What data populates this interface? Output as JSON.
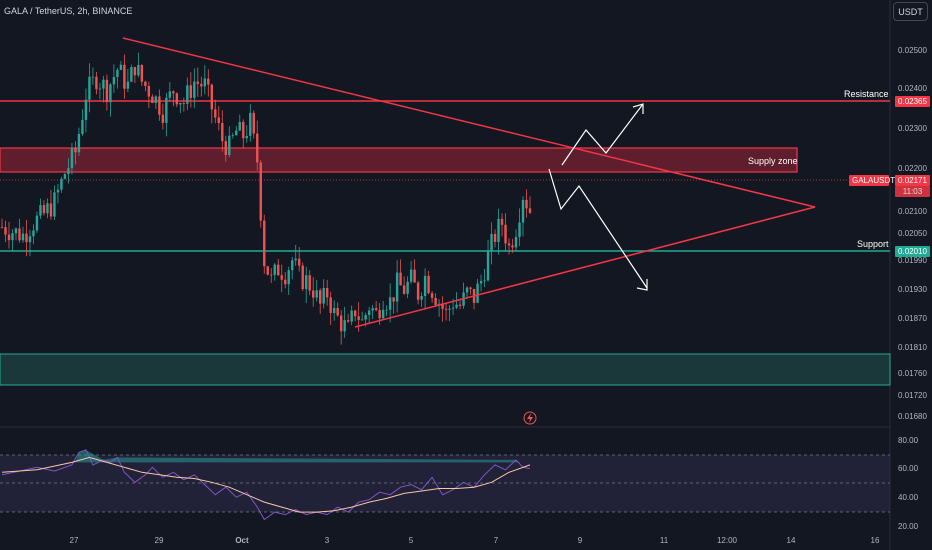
{
  "header": {
    "title": "GALA / TetherUS, 2h, BINANCE",
    "currency": "USDT"
  },
  "chart_data": [
    {
      "type": "candlestick",
      "title": "GALA / TetherUS, 2h, BINANCE",
      "symbol": "GALAUSDT",
      "last_price": "0.02171",
      "countdown": "11:03",
      "price_ticks": [
        "0.02500",
        "0.02400",
        "0.02300",
        "0.02200",
        "0.02100",
        "0.02050",
        "0.01990",
        "0.01930",
        "0.01870",
        "0.01810",
        "0.01760",
        "0.01720",
        "0.01680"
      ],
      "date_ticks": [
        "27",
        "29",
        "Oct",
        "3",
        "5",
        "7",
        "9",
        "11",
        "12:00",
        "14",
        "16"
      ],
      "ylim": [
        0.0166,
        0.0258
      ],
      "levels": {
        "resistance": "0.02365",
        "support": "0.02010"
      },
      "annotations": {
        "resistance": "Resistance",
        "support": "Support",
        "supply_zone": "Supply zone"
      },
      "close_path": [
        [
          0,
          0.0213
        ],
        [
          3,
          0.0212
        ],
        [
          6,
          0.0211
        ],
        [
          9,
          0.0214
        ],
        [
          12,
          0.0216
        ],
        [
          15,
          0.0219
        ],
        [
          18,
          0.0226
        ],
        [
          21,
          0.0231
        ],
        [
          24,
          0.0245
        ],
        [
          27,
          0.0249
        ],
        [
          30,
          0.0246
        ],
        [
          33,
          0.0251
        ],
        [
          36,
          0.0247
        ],
        [
          38,
          0.0252
        ],
        [
          40,
          0.0248
        ],
        [
          43,
          0.0245
        ],
        [
          46,
          0.0241
        ],
        [
          49,
          0.0246
        ],
        [
          52,
          0.0243
        ],
        [
          55,
          0.0248
        ],
        [
          58,
          0.0247
        ],
        [
          61,
          0.0239
        ],
        [
          63,
          0.0234
        ],
        [
          65,
          0.0232
        ],
        [
          67,
          0.0236
        ],
        [
          69,
          0.0235
        ],
        [
          71,
          0.0238
        ],
        [
          73,
          0.0229
        ],
        [
          75,
          0.0205
        ],
        [
          77,
          0.02
        ],
        [
          79,
          0.0203
        ],
        [
          81,
          0.0202
        ],
        [
          83,
          0.0205
        ],
        [
          85,
          0.0201
        ],
        [
          87,
          0.02
        ],
        [
          89,
          0.0198
        ],
        [
          91,
          0.0194
        ],
        [
          93,
          0.0197
        ],
        [
          95,
          0.0192
        ],
        [
          97,
          0.019
        ],
        [
          99,
          0.0188
        ],
        [
          101,
          0.0193
        ],
        [
          103,
          0.019
        ],
        [
          105,
          0.0194
        ],
        [
          107,
          0.0192
        ],
        [
          109,
          0.0196
        ],
        [
          111,
          0.0195
        ],
        [
          113,
          0.0199
        ],
        [
          115,
          0.0198
        ],
        [
          117,
          0.02
        ],
        [
          119,
          0.0197
        ],
        [
          121,
          0.0201
        ],
        [
          123,
          0.0198
        ],
        [
          125,
          0.0195
        ],
        [
          127,
          0.0192
        ],
        [
          129,
          0.0195
        ],
        [
          131,
          0.0194
        ],
        [
          133,
          0.0197
        ],
        [
          135,
          0.0196
        ],
        [
          137,
          0.02
        ],
        [
          139,
          0.0206
        ],
        [
          141,
          0.0211
        ],
        [
          143,
          0.0214
        ],
        [
          145,
          0.0208
        ],
        [
          147,
          0.0213
        ],
        [
          149,
          0.0221
        ],
        [
          151,
          0.0217
        ]
      ],
      "rsi": {
        "ticks": [
          "80.00",
          "60.00",
          "40.00",
          "20.00"
        ],
        "ylim": [
          18,
          88
        ],
        "band": [
          30,
          70
        ],
        "mid": 50,
        "rsi_path": [
          [
            0,
            60
          ],
          [
            5,
            63
          ],
          [
            10,
            66
          ],
          [
            15,
            63
          ],
          [
            20,
            68
          ],
          [
            22,
            78
          ],
          [
            24,
            80
          ],
          [
            26,
            68
          ],
          [
            29,
            72
          ],
          [
            31,
            70
          ],
          [
            33,
            74
          ],
          [
            35,
            62
          ],
          [
            38,
            54
          ],
          [
            41,
            60
          ],
          [
            43,
            66
          ],
          [
            46,
            58
          ],
          [
            49,
            62
          ],
          [
            52,
            56
          ],
          [
            55,
            60
          ],
          [
            58,
            52
          ],
          [
            61,
            44
          ],
          [
            64,
            50
          ],
          [
            67,
            42
          ],
          [
            70,
            46
          ],
          [
            73,
            34
          ],
          [
            75,
            24
          ],
          [
            78,
            30
          ],
          [
            81,
            28
          ],
          [
            84,
            32
          ],
          [
            87,
            28
          ],
          [
            90,
            30
          ],
          [
            93,
            28
          ],
          [
            96,
            34
          ],
          [
            99,
            30
          ],
          [
            102,
            38
          ],
          [
            105,
            40
          ],
          [
            108,
            46
          ],
          [
            111,
            44
          ],
          [
            114,
            50
          ],
          [
            117,
            52
          ],
          [
            120,
            48
          ],
          [
            123,
            58
          ],
          [
            126,
            44
          ],
          [
            129,
            48
          ],
          [
            132,
            54
          ],
          [
            135,
            50
          ],
          [
            138,
            60
          ],
          [
            141,
            68
          ],
          [
            144,
            64
          ],
          [
            147,
            72
          ],
          [
            149,
            66
          ],
          [
            151,
            65
          ]
        ],
        "ma_path": [
          [
            0,
            62
          ],
          [
            10,
            64
          ],
          [
            20,
            70
          ],
          [
            25,
            74
          ],
          [
            30,
            70
          ],
          [
            35,
            66
          ],
          [
            40,
            62
          ],
          [
            45,
            60
          ],
          [
            50,
            58
          ],
          [
            55,
            57
          ],
          [
            60,
            54
          ],
          [
            65,
            50
          ],
          [
            70,
            44
          ],
          [
            75,
            38
          ],
          [
            80,
            34
          ],
          [
            85,
            30
          ],
          [
            90,
            30
          ],
          [
            95,
            31
          ],
          [
            100,
            34
          ],
          [
            105,
            38
          ],
          [
            110,
            41
          ],
          [
            115,
            45
          ],
          [
            120,
            47
          ],
          [
            125,
            49
          ],
          [
            130,
            49
          ],
          [
            135,
            50
          ],
          [
            140,
            54
          ],
          [
            145,
            62
          ],
          [
            151,
            68
          ]
        ]
      }
    }
  ],
  "colors": {
    "up": "#26a69a",
    "down": "#ef5350",
    "red_line": "#f23645",
    "green_line": "#22ab94",
    "rsi": "#7e57c2",
    "ma": "#f7c9a3"
  },
  "icons": {
    "alert": "lightning-alert-icon"
  }
}
